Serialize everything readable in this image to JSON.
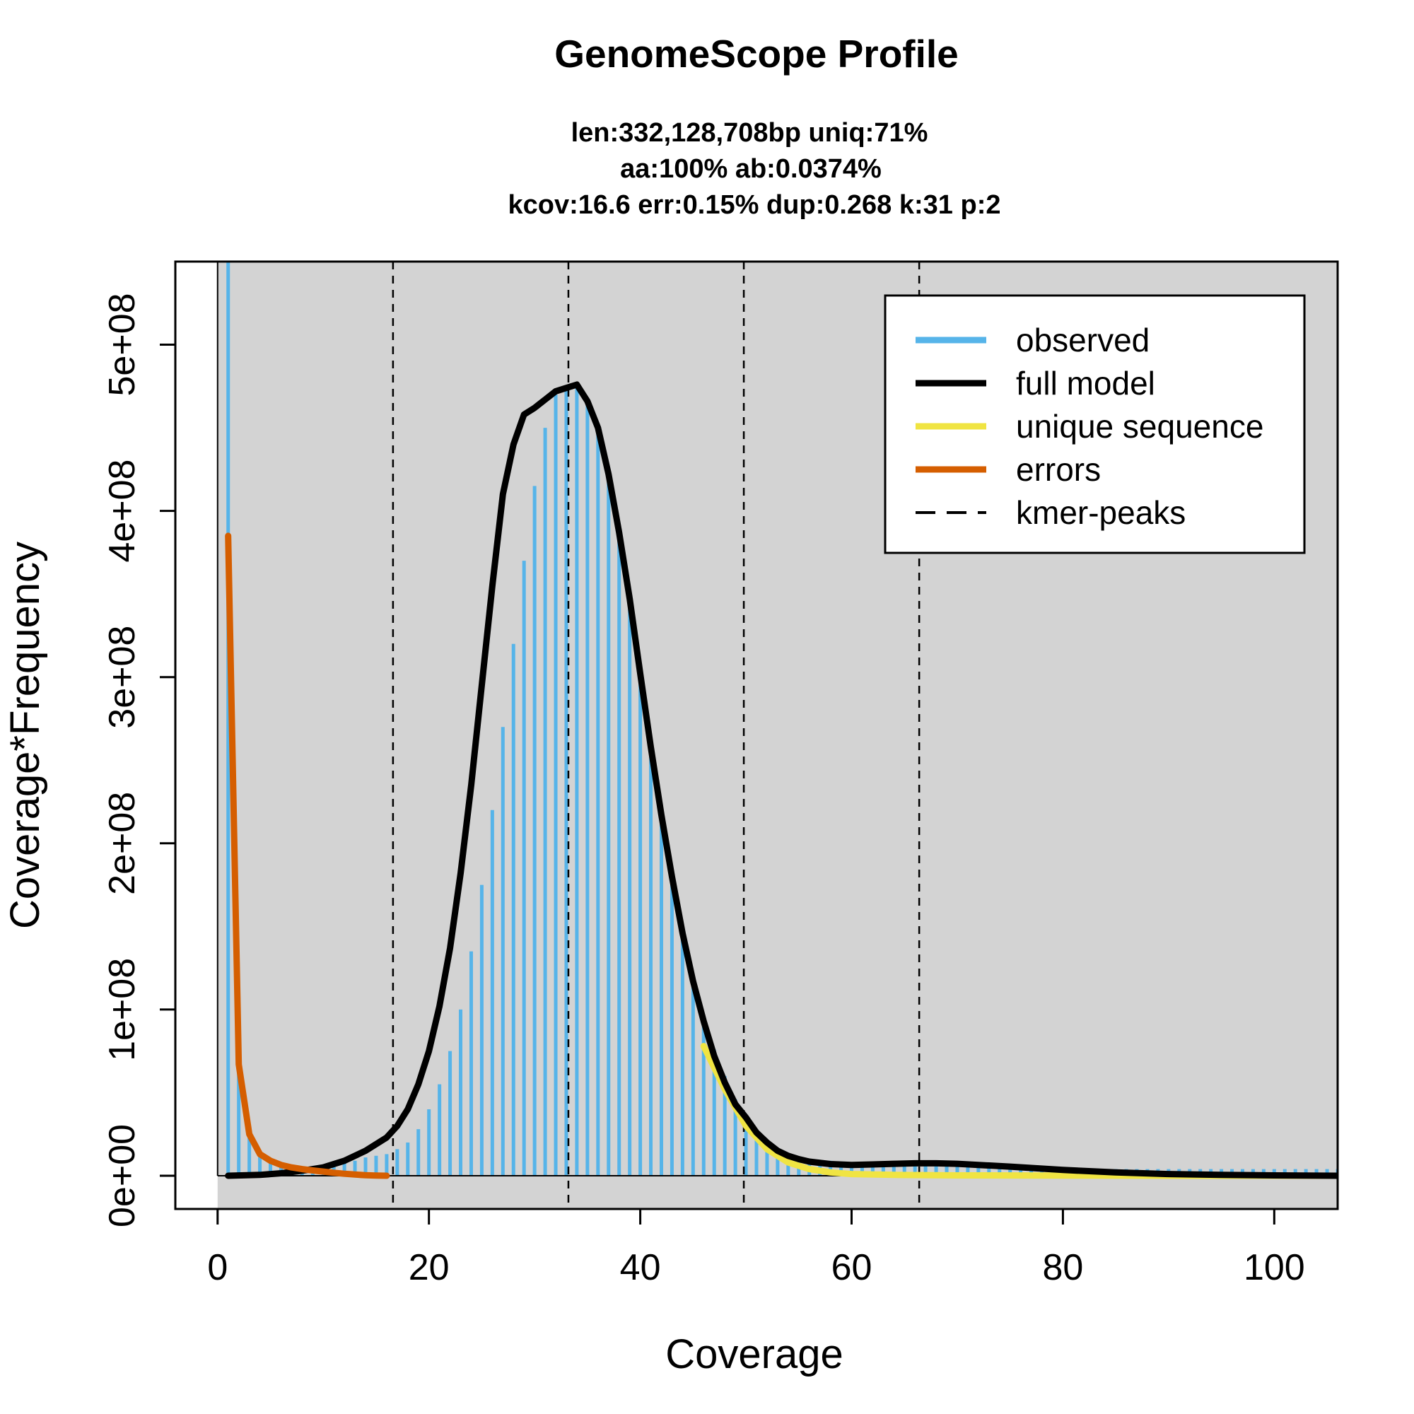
{
  "chart_data": {
    "type": "line",
    "title": "GenomeScope Profile",
    "subtitle_lines": [
      "len:332,128,708bp uniq:71%",
      "aa:100% ab:0.0374%",
      "kcov:16.6 err:0.15%  dup:0.268  k:31 p:2"
    ],
    "xlabel": "Coverage",
    "ylabel": "Coverage*Frequency",
    "xlim": [
      -4,
      106
    ],
    "ylim": [
      -20000000,
      550000000
    ],
    "x_ticks": [
      0,
      20,
      40,
      60,
      80,
      100
    ],
    "x_tick_labels": [
      "0",
      "20",
      "40",
      "60",
      "80",
      "100"
    ],
    "y_ticks": [
      0,
      100000000,
      200000000,
      300000000,
      400000000,
      500000000
    ],
    "y_tick_labels": [
      "0e+00",
      "1e+08",
      "2e+08",
      "3e+08",
      "4e+08",
      "5e+08"
    ],
    "kmer_peaks": [
      16.6,
      33.2,
      49.8,
      66.4
    ],
    "plot_background": "#d3d3d3",
    "grid": false,
    "legend_position": "top-right",
    "legend": [
      {
        "label": "observed",
        "color": "#56b4e9",
        "style": "solid"
      },
      {
        "label": "full model",
        "color": "#000000",
        "style": "solid"
      },
      {
        "label": "unique sequence",
        "color": "#f0e442",
        "style": "solid"
      },
      {
        "label": "errors",
        "color": "#d55e00",
        "style": "solid"
      },
      {
        "label": "kmer-peaks",
        "color": "#000000",
        "style": "dashed"
      }
    ],
    "series": [
      {
        "name": "observed",
        "kind": "bars",
        "color": "#56b4e9",
        "x": [
          1,
          2,
          3,
          4,
          5,
          6,
          7,
          8,
          9,
          10,
          11,
          12,
          13,
          14,
          15,
          16,
          17,
          18,
          19,
          20,
          21,
          22,
          23,
          24,
          25,
          26,
          27,
          28,
          29,
          30,
          31,
          32,
          33,
          34,
          35,
          36,
          37,
          38,
          39,
          40,
          41,
          42,
          43,
          44,
          45,
          46,
          47,
          48,
          49,
          50,
          51,
          52,
          53,
          54,
          55,
          56,
          57,
          58,
          59,
          60,
          61,
          62,
          63,
          64,
          65,
          66,
          67,
          68,
          69,
          70,
          71,
          72,
          73,
          74,
          75,
          76,
          77,
          78,
          79,
          80,
          81,
          82,
          83,
          84,
          85,
          86,
          87,
          88,
          89,
          90,
          91,
          92,
          93,
          94,
          95,
          96,
          97,
          98,
          99,
          100,
          101,
          102,
          103,
          104,
          105,
          106
        ],
        "values": [
          550000000,
          68000000,
          26000000,
          13000000,
          8000000,
          6000000,
          5000000,
          4500000,
          4500000,
          5000000,
          6000000,
          7500000,
          9000000,
          11000000,
          12000000,
          13000000,
          16000000,
          20000000,
          28000000,
          40000000,
          55000000,
          75000000,
          100000000,
          135000000,
          175000000,
          220000000,
          270000000,
          320000000,
          370000000,
          415000000,
          450000000,
          470000000,
          475000000,
          477000000,
          468000000,
          452000000,
          425000000,
          390000000,
          350000000,
          305000000,
          262000000,
          222000000,
          185000000,
          150000000,
          120000000,
          96000000,
          76000000,
          60000000,
          46000000,
          34000000,
          28000000,
          21000000,
          16000000,
          13000000,
          11000000,
          10000000,
          9500000,
          9000000,
          8500000,
          8000000,
          7800000,
          7500000,
          7300000,
          7200000,
          7100000,
          7000000,
          6900000,
          6800000,
          6700000,
          6500000,
          6300000,
          6000000,
          5700000,
          5400000,
          5200000,
          5000000,
          4800000,
          4600000,
          4500000,
          4400000,
          4300000,
          4200000,
          4100000,
          4000000,
          4000000,
          4000000,
          4000000,
          4000000,
          4000000,
          4000000,
          4000000,
          4000000,
          4000000,
          4000000,
          4000000,
          4000000,
          4000000,
          4000000,
          4000000,
          4000000,
          4000000,
          4000000,
          4000000,
          4000000,
          4000000,
          4000000
        ]
      },
      {
        "name": "unique sequence",
        "kind": "line",
        "color": "#f0e442",
        "x": [
          46,
          48,
          50,
          52,
          54,
          56,
          58,
          60,
          64,
          70,
          80,
          90,
          106
        ],
        "values": [
          78000000,
          52000000,
          30000000,
          16000000,
          8000000,
          4000000,
          2000000,
          1000000,
          500000,
          200000,
          100000,
          0,
          0
        ]
      },
      {
        "name": "full model",
        "kind": "line",
        "color": "#000000",
        "x": [
          1,
          4,
          6,
          8,
          10,
          12,
          14,
          16,
          17,
          18,
          19,
          20,
          21,
          22,
          23,
          24,
          25,
          26,
          27,
          28,
          29,
          30,
          31,
          32,
          33,
          34,
          35,
          36,
          37,
          38,
          39,
          40,
          41,
          42,
          43,
          44,
          45,
          46,
          47,
          48,
          49,
          50,
          51,
          52,
          53,
          54,
          55,
          56,
          58,
          60,
          62,
          64,
          66,
          68,
          70,
          72,
          75,
          80,
          85,
          90,
          95,
          100,
          106
        ],
        "values": [
          0,
          500000,
          1500000,
          3000000,
          5000000,
          9000000,
          15000000,
          23000000,
          30000000,
          40000000,
          55000000,
          75000000,
          102000000,
          137000000,
          182000000,
          235000000,
          295000000,
          355000000,
          410000000,
          440000000,
          458000000,
          462000000,
          467000000,
          472000000,
          474000000,
          476000000,
          466000000,
          450000000,
          422000000,
          387000000,
          347000000,
          302000000,
          258000000,
          217000000,
          180000000,
          146000000,
          117000000,
          93000000,
          72000000,
          56000000,
          43000000,
          35000000,
          26000000,
          20000000,
          15000000,
          12000000,
          10000000,
          8500000,
          7000000,
          6500000,
          6800000,
          7200000,
          7500000,
          7500000,
          7200000,
          6500000,
          5500000,
          3500000,
          2000000,
          1000000,
          500000,
          200000,
          0
        ]
      },
      {
        "name": "errors",
        "kind": "line",
        "color": "#d55e00",
        "x": [
          1,
          2,
          3,
          4,
          5,
          6,
          7,
          8,
          9,
          10,
          11,
          12,
          13,
          14,
          15,
          16
        ],
        "values": [
          385000000,
          67000000,
          25000000,
          13000000,
          9000000,
          6500000,
          5000000,
          4000000,
          3200000,
          2500000,
          1800000,
          1200000,
          700000,
          300000,
          100000,
          0
        ]
      }
    ]
  }
}
